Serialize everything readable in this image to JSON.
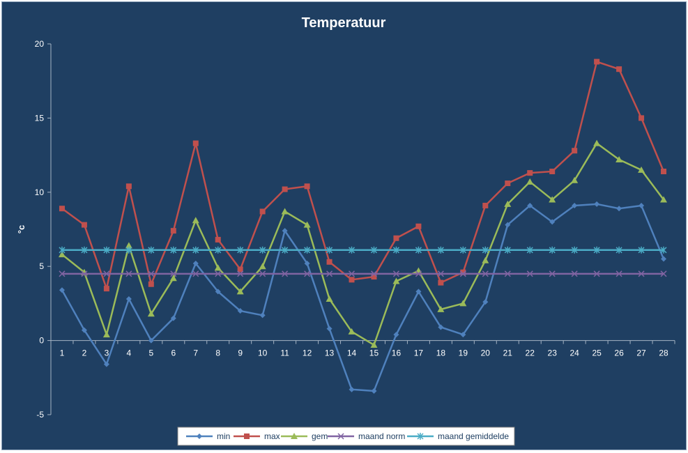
{
  "chart_data": {
    "type": "line",
    "title": "Temperatuur",
    "xlabel": "",
    "ylabel": "°c",
    "ylim": [
      -5,
      20
    ],
    "yticks": [
      -5,
      0,
      5,
      10,
      15,
      20
    ],
    "x": [
      1,
      2,
      3,
      4,
      5,
      6,
      7,
      8,
      9,
      10,
      11,
      12,
      13,
      14,
      15,
      16,
      17,
      18,
      19,
      20,
      21,
      22,
      23,
      24,
      25,
      26,
      27,
      28
    ],
    "grid": false,
    "legend": "bottom",
    "series": [
      {
        "name": "min",
        "color": "#4f81bd",
        "marker": "diamond",
        "values": [
          3.4,
          0.7,
          -1.6,
          2.8,
          0.0,
          1.5,
          5.2,
          3.3,
          2.0,
          1.7,
          7.4,
          5.2,
          0.8,
          -3.3,
          -3.4,
          0.4,
          3.3,
          0.9,
          0.4,
          2.6,
          7.8,
          9.1,
          8.0,
          9.1,
          9.2,
          8.9,
          9.1,
          5.5
        ]
      },
      {
        "name": "max",
        "color": "#c0504d",
        "marker": "square",
        "values": [
          8.9,
          7.8,
          3.5,
          10.4,
          3.8,
          7.4,
          13.3,
          6.8,
          4.8,
          8.7,
          10.2,
          10.4,
          5.3,
          4.1,
          4.3,
          6.9,
          7.7,
          3.9,
          4.6,
          9.1,
          10.6,
          11.3,
          11.4,
          12.8,
          18.8,
          18.3,
          15.0,
          11.4
        ]
      },
      {
        "name": "gem",
        "color": "#9bbb59",
        "marker": "triangle",
        "values": [
          5.8,
          4.6,
          0.4,
          6.4,
          1.8,
          4.2,
          8.1,
          4.9,
          3.3,
          5.0,
          8.7,
          7.8,
          2.8,
          0.6,
          -0.3,
          4.0,
          4.7,
          2.1,
          2.5,
          5.4,
          9.2,
          10.7,
          9.5,
          10.8,
          13.3,
          12.2,
          11.5,
          9.5
        ]
      },
      {
        "name": "maand norm",
        "color": "#8064a2",
        "marker": "x",
        "values": [
          4.5,
          4.5,
          4.5,
          4.5,
          4.5,
          4.5,
          4.5,
          4.5,
          4.5,
          4.5,
          4.5,
          4.5,
          4.5,
          4.5,
          4.5,
          4.5,
          4.5,
          4.5,
          4.5,
          4.5,
          4.5,
          4.5,
          4.5,
          4.5,
          4.5,
          4.5,
          4.5,
          4.5
        ]
      },
      {
        "name": "maand gemiddelde",
        "color": "#4bacc6",
        "marker": "star",
        "values": [
          6.1,
          6.1,
          6.1,
          6.1,
          6.1,
          6.1,
          6.1,
          6.1,
          6.1,
          6.1,
          6.1,
          6.1,
          6.1,
          6.1,
          6.1,
          6.1,
          6.1,
          6.1,
          6.1,
          6.1,
          6.1,
          6.1,
          6.1,
          6.1,
          6.1,
          6.1,
          6.1,
          6.1
        ]
      }
    ]
  }
}
